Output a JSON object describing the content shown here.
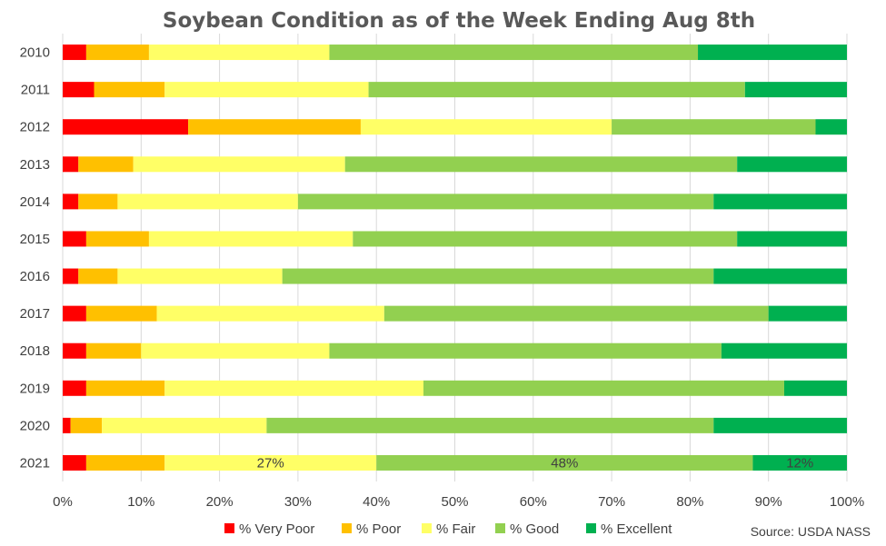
{
  "chart_data": {
    "type": "bar",
    "orientation": "horizontal",
    "stacked": true,
    "title": "Soybean Condition as of the Week Ending Aug 8th",
    "source": "Source: USDA NASS",
    "categories": [
      "2010",
      "2011",
      "2012",
      "2013",
      "2014",
      "2015",
      "2016",
      "2017",
      "2018",
      "2019",
      "2020",
      "2021"
    ],
    "series": [
      {
        "name": "% Very Poor",
        "color": "#ff0000",
        "values": [
          3,
          4,
          16,
          2,
          2,
          3,
          2,
          3,
          3,
          3,
          1,
          3
        ]
      },
      {
        "name": "% Poor",
        "color": "#ffc000",
        "values": [
          8,
          9,
          22,
          7,
          5,
          8,
          5,
          9,
          7,
          10,
          4,
          10
        ]
      },
      {
        "name": "% Fair",
        "color": "#ffff66",
        "values": [
          23,
          26,
          32,
          27,
          23,
          26,
          21,
          29,
          24,
          33,
          21,
          27
        ]
      },
      {
        "name": "% Good",
        "color": "#92d050",
        "values": [
          47,
          48,
          26,
          50,
          53,
          49,
          55,
          49,
          50,
          46,
          57,
          48
        ]
      },
      {
        "name": "% Excellent",
        "color": "#00b050",
        "values": [
          19,
          13,
          4,
          14,
          17,
          14,
          17,
          10,
          16,
          8,
          17,
          12
        ]
      }
    ],
    "data_labels": [
      {
        "category": "2021",
        "series": "% Fair",
        "text": "27%"
      },
      {
        "category": "2021",
        "series": "% Good",
        "text": "48%"
      },
      {
        "category": "2021",
        "series": "% Excellent",
        "text": "12%"
      }
    ],
    "xlim": [
      0,
      100
    ],
    "x_ticks": [
      "0%",
      "10%",
      "20%",
      "30%",
      "40%",
      "50%",
      "60%",
      "70%",
      "80%",
      "90%",
      "100%"
    ],
    "grid": true,
    "legend_position": "bottom"
  }
}
